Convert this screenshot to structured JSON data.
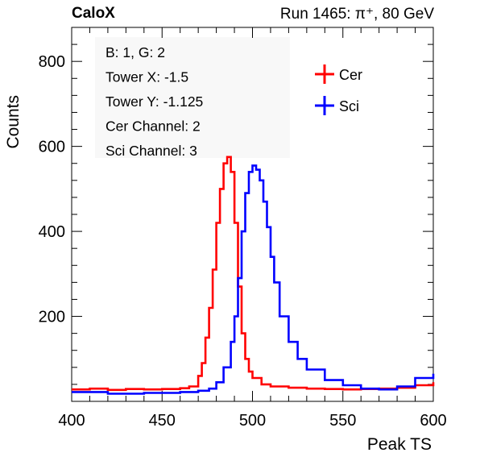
{
  "header": {
    "left": "CaloX",
    "right": "Run 1465:   π⁺, 80 GeV"
  },
  "chart_data": {
    "type": "line",
    "xlabel": "Peak TS",
    "ylabel": "Counts",
    "xlim": [
      400,
      600
    ],
    "ylim": [
      0,
      880
    ],
    "x_ticks": [
      400,
      450,
      500,
      550,
      600
    ],
    "y_ticks": [
      200,
      400,
      600,
      800
    ],
    "grid": false,
    "legend_position": "top-right",
    "info_box": [
      "B: 1, G: 2",
      "Tower X: -1.5",
      "Tower Y: -1.125",
      "Cer Channel: 2",
      "Sci Channel: 3"
    ],
    "series": [
      {
        "name": "Cer",
        "color": "#ff0000",
        "x": [
          400,
          410,
          420,
          430,
          440,
          450,
          460,
          465,
          470,
          472,
          474,
          476,
          478,
          480,
          482,
          484,
          486,
          488,
          490,
          492,
          494,
          496,
          498,
          500,
          505,
          510,
          520,
          530,
          540,
          550,
          560,
          570,
          580,
          590,
          600
        ],
        "y": [
          28,
          30,
          27,
          29,
          28,
          29,
          31,
          35,
          60,
          90,
          150,
          220,
          310,
          420,
          500,
          560,
          575,
          540,
          420,
          270,
          160,
          100,
          70,
          55,
          40,
          35,
          32,
          30,
          29,
          28,
          29,
          30,
          32,
          38,
          45
        ]
      },
      {
        "name": "Sci",
        "color": "#0000ff",
        "x": [
          400,
          420,
          440,
          460,
          470,
          476,
          480,
          484,
          488,
          490,
          492,
          494,
          496,
          498,
          500,
          502,
          504,
          506,
          508,
          510,
          512,
          515,
          520,
          525,
          530,
          540,
          550,
          560,
          570,
          580,
          590,
          600
        ],
        "y": [
          22,
          18,
          20,
          22,
          25,
          30,
          45,
          80,
          140,
          200,
          290,
          400,
          490,
          540,
          555,
          545,
          520,
          470,
          410,
          340,
          280,
          200,
          140,
          100,
          75,
          50,
          38,
          30,
          28,
          35,
          55,
          65
        ]
      }
    ]
  }
}
